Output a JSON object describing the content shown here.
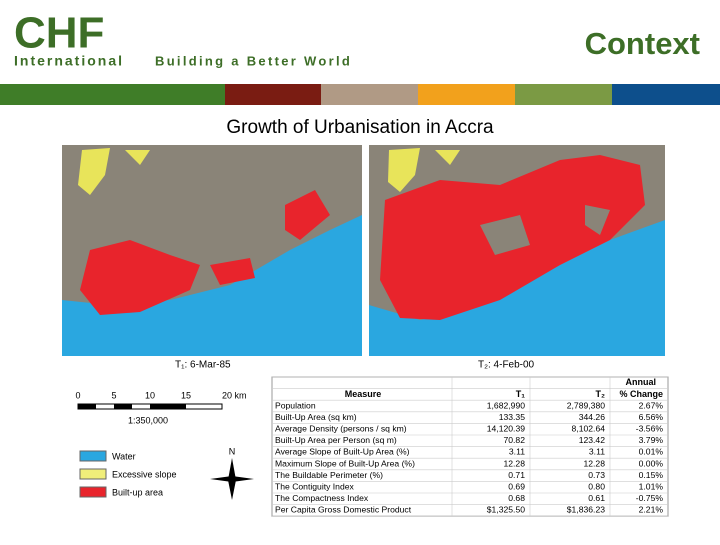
{
  "header": {
    "logo": "CHF",
    "logo_sub": "International",
    "tagline": "Building a Better World",
    "title": "Context"
  },
  "slide": {
    "title": "Growth of Urbanisation in Accra",
    "maps": [
      {
        "caption": "T₁:  6-Mar-85"
      },
      {
        "caption": "T₂:  4-Feb-00"
      }
    ],
    "scale": {
      "ticks": [
        "0",
        "5",
        "10",
        "15",
        "20 km"
      ],
      "ratio": "1:350,000"
    },
    "legend": [
      "Water",
      "Excessive slope",
      "Built-up area"
    ],
    "north": "N",
    "table": {
      "top_header": "Annual",
      "columns": [
        "Measure",
        "T₁",
        "T₂",
        "% Change"
      ],
      "rows": [
        [
          "Population",
          "1,682,990",
          "2,789,380",
          "2.67%"
        ],
        [
          "Built-Up Area (sq km)",
          "133.35",
          "344.26",
          "6.56%"
        ],
        [
          "Average Density (persons / sq km)",
          "14,120.39",
          "8,102.64",
          "-3.56%"
        ],
        [
          "Built-Up Area per Person (sq m)",
          "70.82",
          "123.42",
          "3.79%"
        ],
        [
          "Average Slope of Built-Up Area (%)",
          "3.11",
          "3.11",
          "0.01%"
        ],
        [
          "Maximum Slope of Built-Up Area (%)",
          "12.28",
          "12.28",
          "0.00%"
        ],
        [
          "The Buildable Perimeter (%)",
          "0.71",
          "0.73",
          "0.15%"
        ],
        [
          "The Contiguity Index",
          "0.69",
          "0.80",
          "1.01%"
        ],
        [
          "The Compactness Index",
          "0.68",
          "0.61",
          "-0.75%"
        ],
        [
          "Per Capita Gross Domestic Product",
          "$1,325.50",
          "$1,836.23",
          "2.21%"
        ]
      ]
    }
  }
}
